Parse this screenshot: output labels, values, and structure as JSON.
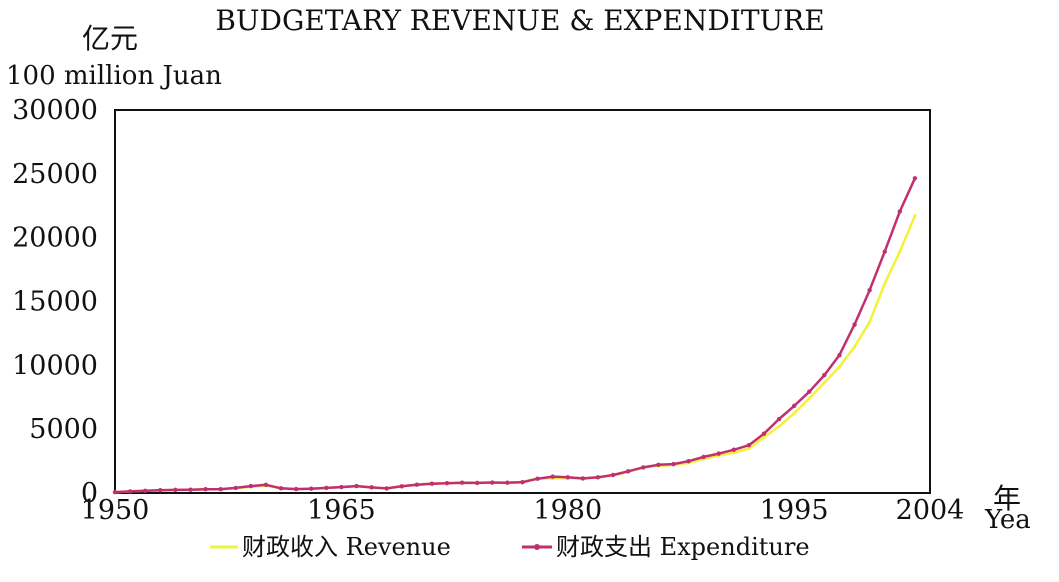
{
  "chart_data": {
    "type": "line",
    "title": "BUDGETARY REVENUE & EXPENDITURE",
    "ylabel_cn": "亿元",
    "ylabel": "100 million Juan",
    "xlabel_cn": "年",
    "xlabel": "Yea",
    "xlim": [
      1950,
      2004
    ],
    "ylim": [
      0,
      30000
    ],
    "x_ticks": [
      1950,
      1965,
      1980,
      1995,
      2004
    ],
    "y_ticks": [
      0,
      5000,
      10000,
      15000,
      20000,
      25000,
      30000
    ],
    "grid": false,
    "legend_position": "bottom",
    "x": [
      1950,
      1951,
      1952,
      1953,
      1954,
      1955,
      1956,
      1957,
      1958,
      1959,
      1960,
      1961,
      1962,
      1963,
      1964,
      1965,
      1966,
      1967,
      1968,
      1969,
      1970,
      1971,
      1972,
      1973,
      1974,
      1975,
      1976,
      1977,
      1978,
      1979,
      1980,
      1981,
      1982,
      1983,
      1984,
      1985,
      1986,
      1987,
      1988,
      1989,
      1990,
      1991,
      1992,
      1993,
      1994,
      1995,
      1996,
      1997,
      1998,
      1999,
      2000,
      2001,
      2002,
      2003
    ],
    "series": [
      {
        "name": "财政收入 Revenue",
        "color": "#f2f23a",
        "values": [
          62,
          125,
          174,
          213,
          245,
          250,
          280,
          304,
          379,
          487,
          572,
          356,
          314,
          342,
          400,
          473,
          558,
          419,
          361,
          526,
          662,
          744,
          766,
          809,
          783,
          815,
          776,
          874,
          1132,
          1146,
          1160,
          1176,
          1212,
          1367,
          1643,
          2005,
          2122,
          2199,
          2357,
          2665,
          2937,
          3149,
          3483,
          4349,
          5218,
          6242,
          7408,
          8651,
          9876,
          11444,
          13395,
          16386,
          18904,
          21715
        ]
      },
      {
        "name": "财政支出 Expenditure",
        "color": "#c03070",
        "values": [
          68,
          122,
          173,
          219,
          244,
          262,
          298,
          296,
          400,
          543,
          644,
          367,
          305,
          340,
          399,
          466,
          541,
          442,
          357,
          526,
          649,
          732,
          766,
          809,
          791,
          821,
          806,
          844,
          1122,
          1282,
          1229,
          1138,
          1230,
          1410,
          1701,
          2004,
          2205,
          2262,
          2491,
          2824,
          3084,
          3387,
          3742,
          4642,
          5793,
          6824,
          7938,
          9234,
          10798,
          13188,
          15887,
          18903,
          22053,
          24650
        ]
      }
    ]
  }
}
